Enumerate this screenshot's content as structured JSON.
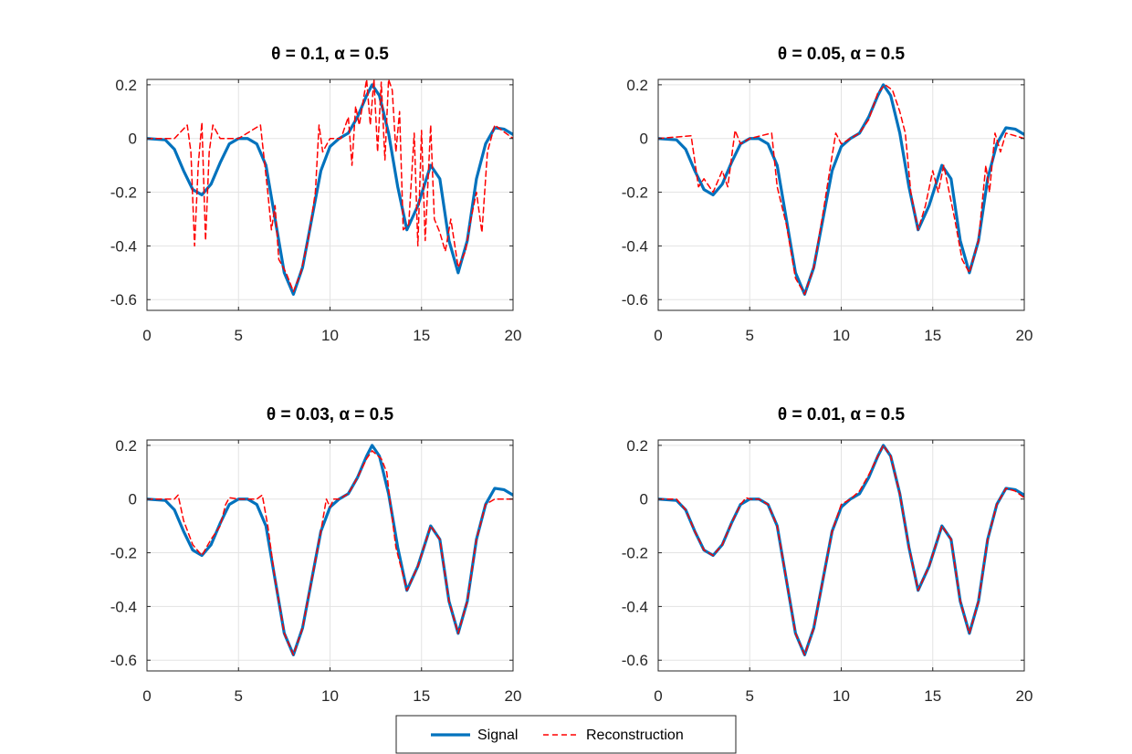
{
  "legend": {
    "entries": [
      {
        "label": "Signal",
        "color": "#0072BD",
        "style": "solid"
      },
      {
        "label": "Reconstruction",
        "color": "#FF0000",
        "style": "dashed"
      }
    ]
  },
  "chart_data": [
    {
      "type": "line",
      "title": "θ = 0.1, α = 0.5",
      "xlabel": "",
      "ylabel": "",
      "xlim": [
        0,
        20
      ],
      "ylim": [
        -0.64,
        0.22
      ],
      "xticks": [
        0,
        5,
        10,
        15,
        20
      ],
      "yticks": [
        -0.6,
        -0.4,
        -0.2,
        0,
        0.2
      ],
      "xtick_labels": [
        "0",
        "5",
        "10",
        "15",
        "20"
      ],
      "ytick_labels": [
        "-0.6",
        "-0.4",
        "-0.2",
        "0",
        "0.2"
      ],
      "grid": true,
      "series": [
        {
          "name": "Signal",
          "color": "#0072BD",
          "style": "solid",
          "x": [
            0,
            1,
            1.5,
            2,
            2.5,
            3,
            3.5,
            4,
            4.5,
            5,
            5.5,
            6,
            6.5,
            7,
            7.5,
            8,
            8.5,
            9,
            9.5,
            10,
            10.5,
            11,
            11.5,
            12,
            12.3,
            12.7,
            13.2,
            13.7,
            14.2,
            14.8,
            15.5,
            16,
            16.5,
            17,
            17.5,
            18,
            18.5,
            19,
            19.5,
            20
          ],
          "y": [
            0,
            -0.005,
            -0.04,
            -0.12,
            -0.19,
            -0.21,
            -0.17,
            -0.09,
            -0.02,
            0,
            0,
            -0.02,
            -0.1,
            -0.3,
            -0.5,
            -0.58,
            -0.48,
            -0.3,
            -0.12,
            -0.03,
            0,
            0.02,
            0.08,
            0.16,
            0.2,
            0.16,
            0.02,
            -0.18,
            -0.34,
            -0.25,
            -0.1,
            -0.15,
            -0.38,
            -0.5,
            -0.38,
            -0.15,
            -0.02,
            0.04,
            0.035,
            0.015
          ]
        },
        {
          "name": "Reconstruction",
          "color": "#FF0000",
          "style": "dashed",
          "x": [
            0,
            1.5,
            2.2,
            2.4,
            2.6,
            2.8,
            3.0,
            3.2,
            3.4,
            3.6,
            4.0,
            5,
            6.2,
            6.6,
            6.8,
            7.0,
            7.2,
            7.6,
            8,
            8.4,
            8.8,
            9.2,
            9.4,
            9.6,
            10,
            10.6,
            11.0,
            11.2,
            11.4,
            11.6,
            12.0,
            12.2,
            12.4,
            12.6,
            12.8,
            13.0,
            13.2,
            13.4,
            13.6,
            13.8,
            14.0,
            14.3,
            14.6,
            14.8,
            15.0,
            15.2,
            15.5,
            15.7,
            16.0,
            16.3,
            16.6,
            17.0,
            17.4,
            17.7,
            18.0,
            18.3,
            18.6,
            19.0,
            20
          ],
          "y": [
            0,
            0,
            0.05,
            -0.05,
            -0.4,
            -0.1,
            0.06,
            -0.38,
            -0.05,
            0.05,
            0,
            0,
            0.05,
            -0.2,
            -0.34,
            -0.25,
            -0.45,
            -0.5,
            -0.57,
            -0.5,
            -0.38,
            -0.2,
            0.05,
            -0.05,
            0,
            0,
            0.08,
            -0.1,
            0.12,
            0.05,
            0.22,
            0.05,
            0.22,
            -0.05,
            0.21,
            -0.08,
            0.22,
            0.18,
            -0.05,
            0.1,
            -0.34,
            -0.32,
            0.02,
            -0.4,
            0.03,
            -0.38,
            0.05,
            -0.3,
            -0.35,
            -0.42,
            -0.3,
            -0.48,
            -0.42,
            -0.3,
            -0.2,
            -0.35,
            -0.05,
            0.05,
            0
          ]
        }
      ]
    },
    {
      "type": "line",
      "title": "θ = 0.05, α = 0.5",
      "xlabel": "",
      "ylabel": "",
      "xlim": [
        0,
        20
      ],
      "ylim": [
        -0.64,
        0.22
      ],
      "xticks": [
        0,
        5,
        10,
        15,
        20
      ],
      "yticks": [
        -0.6,
        -0.4,
        -0.2,
        0,
        0.2
      ],
      "xtick_labels": [
        "0",
        "5",
        "10",
        "15",
        "20"
      ],
      "ytick_labels": [
        "-0.6",
        "-0.4",
        "-0.2",
        "0",
        "0.2"
      ],
      "grid": true,
      "series": [
        {
          "name": "Signal",
          "color": "#0072BD",
          "style": "solid",
          "x": [
            0,
            1,
            1.5,
            2,
            2.5,
            3,
            3.5,
            4,
            4.5,
            5,
            5.5,
            6,
            6.5,
            7,
            7.5,
            8,
            8.5,
            9,
            9.5,
            10,
            10.5,
            11,
            11.5,
            12,
            12.3,
            12.7,
            13.2,
            13.7,
            14.2,
            14.8,
            15.5,
            16,
            16.5,
            17,
            17.5,
            18,
            18.5,
            19,
            19.5,
            20
          ],
          "y": [
            0,
            -0.005,
            -0.04,
            -0.12,
            -0.19,
            -0.21,
            -0.17,
            -0.09,
            -0.02,
            0,
            0,
            -0.02,
            -0.1,
            -0.3,
            -0.5,
            -0.58,
            -0.48,
            -0.3,
            -0.12,
            -0.03,
            0,
            0.02,
            0.08,
            0.16,
            0.2,
            0.16,
            0.02,
            -0.18,
            -0.34,
            -0.25,
            -0.1,
            -0.15,
            -0.38,
            -0.5,
            -0.38,
            -0.15,
            -0.02,
            0.04,
            0.035,
            0.015
          ]
        },
        {
          "name": "Reconstruction",
          "color": "#FF0000",
          "style": "dashed",
          "x": [
            0,
            1.8,
            2.2,
            2.5,
            3.0,
            3.5,
            3.8,
            4.2,
            4.5,
            5,
            6.2,
            6.5,
            7.0,
            7.5,
            8,
            8.5,
            9.0,
            9.3,
            9.7,
            10,
            11,
            11.5,
            12.0,
            12.4,
            12.8,
            13.2,
            13.5,
            13.8,
            14.2,
            14.6,
            15.0,
            15.3,
            15.6,
            15.9,
            16.2,
            16.6,
            17.0,
            17.5,
            17.9,
            18.1,
            18.4,
            18.7,
            19.0,
            20
          ],
          "y": [
            0,
            0.01,
            -0.18,
            -0.15,
            -0.2,
            -0.12,
            -0.18,
            0.03,
            -0.02,
            0,
            0.02,
            -0.18,
            -0.32,
            -0.52,
            -0.58,
            -0.48,
            -0.28,
            -0.15,
            0.02,
            -0.02,
            0.02,
            0.07,
            0.17,
            0.2,
            0.18,
            0.1,
            0.02,
            -0.2,
            -0.34,
            -0.25,
            -0.12,
            -0.2,
            -0.1,
            -0.2,
            -0.3,
            -0.45,
            -0.5,
            -0.38,
            -0.1,
            -0.2,
            0.02,
            -0.05,
            0.02,
            0
          ]
        }
      ]
    },
    {
      "type": "line",
      "title": "θ = 0.03, α = 0.5",
      "xlabel": "",
      "ylabel": "",
      "xlim": [
        0,
        20
      ],
      "ylim": [
        -0.64,
        0.22
      ],
      "xticks": [
        0,
        5,
        10,
        15,
        20
      ],
      "yticks": [
        -0.6,
        -0.4,
        -0.2,
        0,
        0.2
      ],
      "xtick_labels": [
        "0",
        "5",
        "10",
        "15",
        "20"
      ],
      "ytick_labels": [
        "-0.6",
        "-0.4",
        "-0.2",
        "0",
        "0.2"
      ],
      "grid": true,
      "series": [
        {
          "name": "Signal",
          "color": "#0072BD",
          "style": "solid",
          "x": [
            0,
            1,
            1.5,
            2,
            2.5,
            3,
            3.5,
            4,
            4.5,
            5,
            5.5,
            6,
            6.5,
            7,
            7.5,
            8,
            8.5,
            9,
            9.5,
            10,
            10.5,
            11,
            11.5,
            12,
            12.3,
            12.7,
            13.2,
            13.7,
            14.2,
            14.8,
            15.5,
            16,
            16.5,
            17,
            17.5,
            18,
            18.5,
            19,
            19.5,
            20
          ],
          "y": [
            0,
            -0.005,
            -0.04,
            -0.12,
            -0.19,
            -0.21,
            -0.17,
            -0.09,
            -0.02,
            0,
            0,
            -0.02,
            -0.1,
            -0.3,
            -0.5,
            -0.58,
            -0.48,
            -0.3,
            -0.12,
            -0.03,
            0,
            0.02,
            0.08,
            0.16,
            0.2,
            0.16,
            0.02,
            -0.18,
            -0.34,
            -0.25,
            -0.1,
            -0.15,
            -0.38,
            -0.5,
            -0.38,
            -0.15,
            -0.02,
            0.04,
            0.035,
            0.015
          ]
        },
        {
          "name": "Reconstruction",
          "color": "#FF0000",
          "style": "dashed",
          "x": [
            0,
            1.5,
            1.7,
            2.0,
            2.5,
            3.0,
            3.5,
            4.0,
            4.3,
            4.5,
            5,
            6.0,
            6.3,
            6.6,
            7.0,
            7.5,
            8,
            8.5,
            9.0,
            9.5,
            9.8,
            10,
            10.2,
            10.5,
            11,
            11.5,
            12,
            12.3,
            12.8,
            13.1,
            13.3,
            13.6,
            14.2,
            14.8,
            15.5,
            16,
            16.5,
            17,
            17.5,
            18,
            18.5,
            19,
            20
          ],
          "y": [
            0,
            0,
            0.015,
            -0.08,
            -0.17,
            -0.21,
            -0.15,
            -0.1,
            -0.02,
            0.005,
            0,
            0,
            0.015,
            -0.1,
            -0.3,
            -0.5,
            -0.58,
            -0.48,
            -0.3,
            -0.12,
            0,
            -0.03,
            0,
            0,
            0.02,
            0.08,
            0.15,
            0.18,
            0.15,
            0.1,
            -0.02,
            -0.18,
            -0.34,
            -0.25,
            -0.1,
            -0.15,
            -0.38,
            -0.5,
            -0.38,
            -0.15,
            -0.02,
            0,
            0
          ]
        }
      ]
    },
    {
      "type": "line",
      "title": "θ = 0.01, α = 0.5",
      "xlabel": "",
      "ylabel": "",
      "xlim": [
        0,
        20
      ],
      "ylim": [
        -0.64,
        0.22
      ],
      "xticks": [
        0,
        5,
        10,
        15,
        20
      ],
      "yticks": [
        -0.6,
        -0.4,
        -0.2,
        0,
        0.2
      ],
      "xtick_labels": [
        "0",
        "5",
        "10",
        "15",
        "20"
      ],
      "ytick_labels": [
        "-0.6",
        "-0.4",
        "-0.2",
        "0",
        "0.2"
      ],
      "grid": true,
      "series": [
        {
          "name": "Signal",
          "color": "#0072BD",
          "style": "solid",
          "x": [
            0,
            1,
            1.5,
            2,
            2.5,
            3,
            3.5,
            4,
            4.5,
            5,
            5.5,
            6,
            6.5,
            7,
            7.5,
            8,
            8.5,
            9,
            9.5,
            10,
            10.5,
            11,
            11.5,
            12,
            12.3,
            12.7,
            13.2,
            13.7,
            14.2,
            14.8,
            15.5,
            16,
            16.5,
            17,
            17.5,
            18,
            18.5,
            19,
            19.5,
            20
          ],
          "y": [
            0,
            -0.005,
            -0.04,
            -0.12,
            -0.19,
            -0.21,
            -0.17,
            -0.09,
            -0.02,
            0,
            0,
            -0.02,
            -0.1,
            -0.3,
            -0.5,
            -0.58,
            -0.48,
            -0.3,
            -0.12,
            -0.03,
            0,
            0.02,
            0.08,
            0.16,
            0.2,
            0.16,
            0.02,
            -0.18,
            -0.34,
            -0.25,
            -0.1,
            -0.15,
            -0.38,
            -0.5,
            -0.38,
            -0.15,
            -0.02,
            0.04,
            0.035,
            0.015
          ]
        },
        {
          "name": "Reconstruction",
          "color": "#FF0000",
          "style": "dashed",
          "x": [
            0,
            1,
            1.5,
            2,
            2.5,
            3,
            3.5,
            4,
            4.5,
            4.8,
            5,
            5.5,
            6,
            6.5,
            7,
            7.5,
            8,
            8.5,
            9,
            9.5,
            10,
            10.5,
            11,
            11.5,
            12,
            12.3,
            12.7,
            13.2,
            13.7,
            14.2,
            14.8,
            15.5,
            16,
            16.5,
            17,
            17.5,
            18,
            18.5,
            19,
            19.5,
            20
          ],
          "y": [
            0,
            0,
            -0.04,
            -0.12,
            -0.19,
            -0.21,
            -0.17,
            -0.09,
            -0.02,
            0.005,
            0,
            0,
            -0.02,
            -0.1,
            -0.3,
            -0.5,
            -0.58,
            -0.48,
            -0.3,
            -0.12,
            -0.02,
            0,
            0.03,
            0.09,
            0.16,
            0.2,
            0.16,
            0.02,
            -0.18,
            -0.34,
            -0.25,
            -0.1,
            -0.15,
            -0.38,
            -0.5,
            -0.38,
            -0.15,
            -0.02,
            0.04,
            0.03,
            0.005
          ]
        }
      ]
    }
  ]
}
